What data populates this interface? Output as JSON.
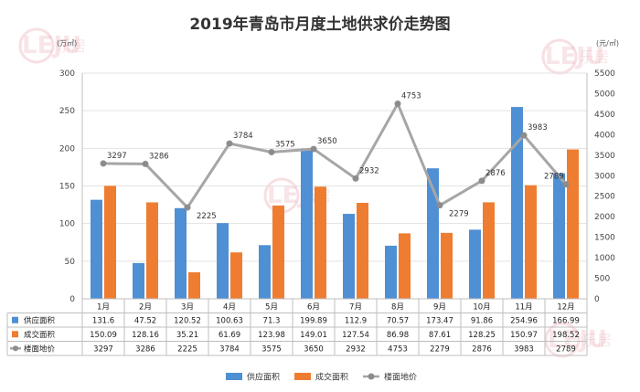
{
  "title": "2019年青岛市月度土地供求价走势图",
  "watermark": {
    "logo": "LEJU",
    "text": "乐居"
  },
  "chart_data": {
    "type": "bar",
    "title": "2019年青岛市月度土地供求价走势图",
    "y_left_unit": "(万㎡)",
    "y_right_unit": "(元/㎡)",
    "ylim_left": [
      0,
      300
    ],
    "ylim_right": [
      0,
      5500
    ],
    "y_left_ticks": [
      0,
      50,
      100,
      150,
      200,
      250,
      300
    ],
    "y_right_ticks": [
      0,
      500,
      1000,
      1500,
      2000,
      2500,
      3000,
      3500,
      4000,
      4500,
      5000,
      5500
    ],
    "categories": [
      "1月",
      "2月",
      "3月",
      "4月",
      "5月",
      "6月",
      "7月",
      "8月",
      "9月",
      "10月",
      "11月",
      "12月"
    ],
    "series": [
      {
        "name": "供应面积",
        "type": "bar",
        "axis": "left",
        "color": "#4f8fd3",
        "values": [
          131.6,
          47.52,
          120.52,
          100.63,
          71.3,
          199.89,
          112.9,
          70.57,
          173.47,
          91.86,
          254.96,
          166.99
        ],
        "labels": [
          "131.6",
          "47.52",
          "120.52",
          "100.63",
          "71.3",
          "199.89",
          "112.9",
          "70.57",
          "173.47",
          "91.86",
          "254.96",
          "166.99"
        ]
      },
      {
        "name": "成交面积",
        "type": "bar",
        "axis": "left",
        "color": "#ee7d31",
        "values": [
          150.09,
          128.16,
          35.21,
          61.69,
          123.98,
          149.01,
          127.54,
          86.98,
          87.61,
          128.25,
          150.97,
          198.52
        ],
        "labels": [
          "150.09",
          "128.16",
          "35.21",
          "61.69",
          "123.98",
          "149.01",
          "127.54",
          "86.98",
          "87.61",
          "128.25",
          "150.97",
          "198.52"
        ]
      },
      {
        "name": "楼面地价",
        "type": "line",
        "axis": "right",
        "color": "#a6a6a6",
        "values": [
          3297,
          3286,
          2225,
          3784,
          3575,
          3650,
          2932,
          4753,
          2279,
          2876,
          3983,
          2789
        ],
        "labels": [
          "3297",
          "3286",
          "2225",
          "3784",
          "3575",
          "3650",
          "2932",
          "4753",
          "2279",
          "2876",
          "3983",
          "2789"
        ]
      }
    ],
    "legend_position": "bottom",
    "grid": true
  }
}
